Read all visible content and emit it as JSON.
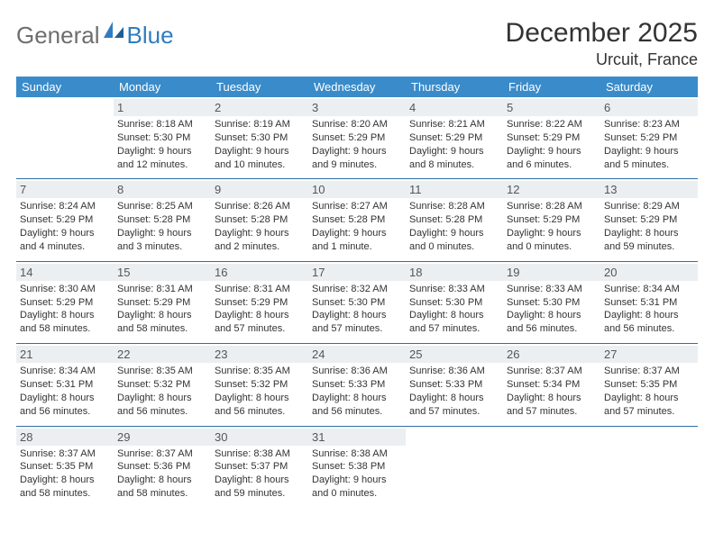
{
  "brand": {
    "word1": "General",
    "word2": "Blue"
  },
  "title": "December 2025",
  "location": "Urcuit, France",
  "colors": {
    "header_bg": "#3a8bc9",
    "header_text": "#ffffff",
    "daynum_bg": "#eceff1",
    "row_border": "#2f6fa6",
    "logo_gray": "#6e6e6e",
    "logo_blue": "#2f7dc0"
  },
  "day_headers": [
    "Sunday",
    "Monday",
    "Tuesday",
    "Wednesday",
    "Thursday",
    "Friday",
    "Saturday"
  ],
  "weeks": [
    [
      {
        "n": "",
        "sunrise": "",
        "sunset": "",
        "daylight": ""
      },
      {
        "n": "1",
        "sunrise": "Sunrise: 8:18 AM",
        "sunset": "Sunset: 5:30 PM",
        "daylight": "Daylight: 9 hours and 12 minutes."
      },
      {
        "n": "2",
        "sunrise": "Sunrise: 8:19 AM",
        "sunset": "Sunset: 5:30 PM",
        "daylight": "Daylight: 9 hours and 10 minutes."
      },
      {
        "n": "3",
        "sunrise": "Sunrise: 8:20 AM",
        "sunset": "Sunset: 5:29 PM",
        "daylight": "Daylight: 9 hours and 9 minutes."
      },
      {
        "n": "4",
        "sunrise": "Sunrise: 8:21 AM",
        "sunset": "Sunset: 5:29 PM",
        "daylight": "Daylight: 9 hours and 8 minutes."
      },
      {
        "n": "5",
        "sunrise": "Sunrise: 8:22 AM",
        "sunset": "Sunset: 5:29 PM",
        "daylight": "Daylight: 9 hours and 6 minutes."
      },
      {
        "n": "6",
        "sunrise": "Sunrise: 8:23 AM",
        "sunset": "Sunset: 5:29 PM",
        "daylight": "Daylight: 9 hours and 5 minutes."
      }
    ],
    [
      {
        "n": "7",
        "sunrise": "Sunrise: 8:24 AM",
        "sunset": "Sunset: 5:29 PM",
        "daylight": "Daylight: 9 hours and 4 minutes."
      },
      {
        "n": "8",
        "sunrise": "Sunrise: 8:25 AM",
        "sunset": "Sunset: 5:28 PM",
        "daylight": "Daylight: 9 hours and 3 minutes."
      },
      {
        "n": "9",
        "sunrise": "Sunrise: 8:26 AM",
        "sunset": "Sunset: 5:28 PM",
        "daylight": "Daylight: 9 hours and 2 minutes."
      },
      {
        "n": "10",
        "sunrise": "Sunrise: 8:27 AM",
        "sunset": "Sunset: 5:28 PM",
        "daylight": "Daylight: 9 hours and 1 minute."
      },
      {
        "n": "11",
        "sunrise": "Sunrise: 8:28 AM",
        "sunset": "Sunset: 5:28 PM",
        "daylight": "Daylight: 9 hours and 0 minutes."
      },
      {
        "n": "12",
        "sunrise": "Sunrise: 8:28 AM",
        "sunset": "Sunset: 5:29 PM",
        "daylight": "Daylight: 9 hours and 0 minutes."
      },
      {
        "n": "13",
        "sunrise": "Sunrise: 8:29 AM",
        "sunset": "Sunset: 5:29 PM",
        "daylight": "Daylight: 8 hours and 59 minutes."
      }
    ],
    [
      {
        "n": "14",
        "sunrise": "Sunrise: 8:30 AM",
        "sunset": "Sunset: 5:29 PM",
        "daylight": "Daylight: 8 hours and 58 minutes."
      },
      {
        "n": "15",
        "sunrise": "Sunrise: 8:31 AM",
        "sunset": "Sunset: 5:29 PM",
        "daylight": "Daylight: 8 hours and 58 minutes."
      },
      {
        "n": "16",
        "sunrise": "Sunrise: 8:31 AM",
        "sunset": "Sunset: 5:29 PM",
        "daylight": "Daylight: 8 hours and 57 minutes."
      },
      {
        "n": "17",
        "sunrise": "Sunrise: 8:32 AM",
        "sunset": "Sunset: 5:30 PM",
        "daylight": "Daylight: 8 hours and 57 minutes."
      },
      {
        "n": "18",
        "sunrise": "Sunrise: 8:33 AM",
        "sunset": "Sunset: 5:30 PM",
        "daylight": "Daylight: 8 hours and 57 minutes."
      },
      {
        "n": "19",
        "sunrise": "Sunrise: 8:33 AM",
        "sunset": "Sunset: 5:30 PM",
        "daylight": "Daylight: 8 hours and 56 minutes."
      },
      {
        "n": "20",
        "sunrise": "Sunrise: 8:34 AM",
        "sunset": "Sunset: 5:31 PM",
        "daylight": "Daylight: 8 hours and 56 minutes."
      }
    ],
    [
      {
        "n": "21",
        "sunrise": "Sunrise: 8:34 AM",
        "sunset": "Sunset: 5:31 PM",
        "daylight": "Daylight: 8 hours and 56 minutes."
      },
      {
        "n": "22",
        "sunrise": "Sunrise: 8:35 AM",
        "sunset": "Sunset: 5:32 PM",
        "daylight": "Daylight: 8 hours and 56 minutes."
      },
      {
        "n": "23",
        "sunrise": "Sunrise: 8:35 AM",
        "sunset": "Sunset: 5:32 PM",
        "daylight": "Daylight: 8 hours and 56 minutes."
      },
      {
        "n": "24",
        "sunrise": "Sunrise: 8:36 AM",
        "sunset": "Sunset: 5:33 PM",
        "daylight": "Daylight: 8 hours and 56 minutes."
      },
      {
        "n": "25",
        "sunrise": "Sunrise: 8:36 AM",
        "sunset": "Sunset: 5:33 PM",
        "daylight": "Daylight: 8 hours and 57 minutes."
      },
      {
        "n": "26",
        "sunrise": "Sunrise: 8:37 AM",
        "sunset": "Sunset: 5:34 PM",
        "daylight": "Daylight: 8 hours and 57 minutes."
      },
      {
        "n": "27",
        "sunrise": "Sunrise: 8:37 AM",
        "sunset": "Sunset: 5:35 PM",
        "daylight": "Daylight: 8 hours and 57 minutes."
      }
    ],
    [
      {
        "n": "28",
        "sunrise": "Sunrise: 8:37 AM",
        "sunset": "Sunset: 5:35 PM",
        "daylight": "Daylight: 8 hours and 58 minutes."
      },
      {
        "n": "29",
        "sunrise": "Sunrise: 8:37 AM",
        "sunset": "Sunset: 5:36 PM",
        "daylight": "Daylight: 8 hours and 58 minutes."
      },
      {
        "n": "30",
        "sunrise": "Sunrise: 8:38 AM",
        "sunset": "Sunset: 5:37 PM",
        "daylight": "Daylight: 8 hours and 59 minutes."
      },
      {
        "n": "31",
        "sunrise": "Sunrise: 8:38 AM",
        "sunset": "Sunset: 5:38 PM",
        "daylight": "Daylight: 9 hours and 0 minutes."
      },
      {
        "n": "",
        "sunrise": "",
        "sunset": "",
        "daylight": ""
      },
      {
        "n": "",
        "sunrise": "",
        "sunset": "",
        "daylight": ""
      },
      {
        "n": "",
        "sunrise": "",
        "sunset": "",
        "daylight": ""
      }
    ]
  ]
}
